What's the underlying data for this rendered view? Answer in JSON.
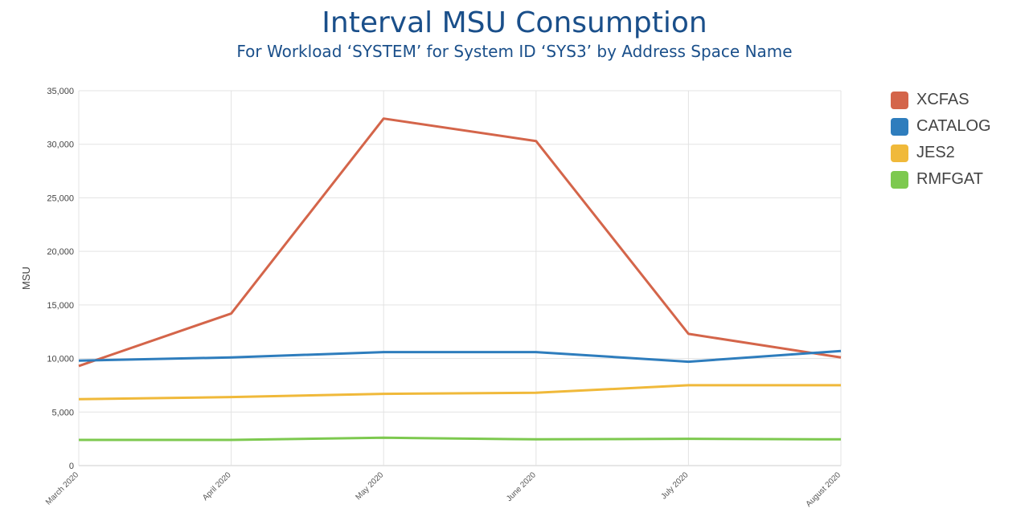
{
  "title": "Interval MSU Consumption",
  "subtitle": "For Workload ‘SYSTEM’ for System ID ‘SYS3’ by Address Space Name",
  "chart_data": {
    "type": "line",
    "ylabel": "MSU",
    "xlabel": "",
    "ylim": [
      0,
      35000
    ],
    "yticks": [
      0,
      5000,
      10000,
      15000,
      20000,
      25000,
      30000,
      35000
    ],
    "ytick_labels": [
      "0",
      "5,000",
      "10,000",
      "15,000",
      "20,000",
      "25,000",
      "30,000",
      "35,000"
    ],
    "categories": [
      "March 2020",
      "April 2020",
      "May 2020",
      "June 2020",
      "July 2020",
      "August 2020"
    ],
    "grid": true,
    "legend_position": "right",
    "series": [
      {
        "name": "XCFAS",
        "color": "#d4654a",
        "values": [
          9300,
          14200,
          32400,
          30300,
          12300,
          10100
        ]
      },
      {
        "name": "CATALOG",
        "color": "#2e7dbd",
        "values": [
          9800,
          10100,
          10600,
          10600,
          9700,
          10700
        ]
      },
      {
        "name": "JES2",
        "color": "#f0b93a",
        "values": [
          6200,
          6400,
          6700,
          6800,
          7500,
          7500
        ]
      },
      {
        "name": "RMFGAT",
        "color": "#7dc94f",
        "values": [
          2400,
          2400,
          2600,
          2450,
          2500,
          2450
        ]
      }
    ]
  }
}
